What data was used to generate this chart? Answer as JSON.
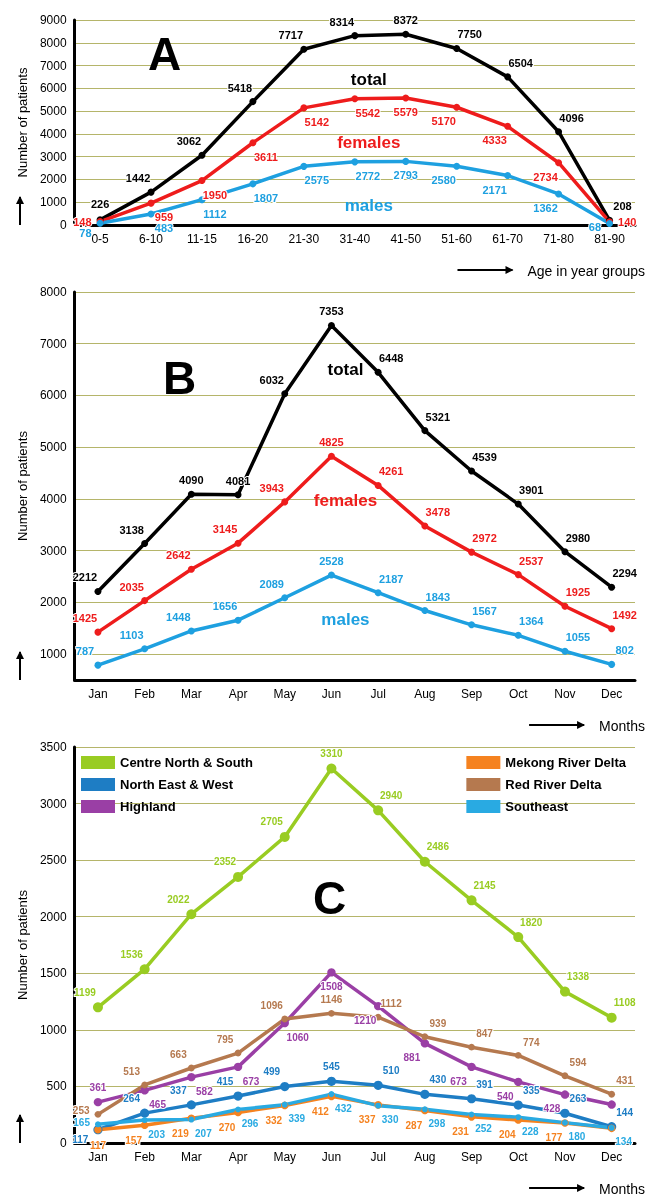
{
  "chart_data": [
    {
      "type": "line",
      "title": "A",
      "xlabel": "Age in year groups",
      "ylabel": "Number of patients",
      "categories": [
        "0-5",
        "6-10",
        "11-15",
        "16-20",
        "21-30",
        "31-40",
        "41-50",
        "51-60",
        "61-70",
        "71-80",
        "81-90"
      ],
      "series": [
        {
          "name": "total",
          "color": "#000000",
          "values": [
            226,
            1442,
            3062,
            5418,
            7717,
            8314,
            8372,
            7750,
            6504,
            4096,
            208
          ]
        },
        {
          "name": "females",
          "color": "#ee1c1c",
          "values": [
            148,
            959,
            1950,
            3611,
            5142,
            5542,
            5579,
            5170,
            4333,
            2734,
            140
          ]
        },
        {
          "name": "males",
          "color": "#1ea0e0",
          "values": [
            78,
            483,
            1112,
            1807,
            2575,
            2772,
            2793,
            2580,
            2171,
            1362,
            68
          ]
        }
      ],
      "ylim": [
        0,
        9000
      ],
      "yticks": [
        0,
        1000,
        2000,
        3000,
        4000,
        5000,
        6000,
        7000,
        8000,
        9000
      ],
      "grid": "y",
      "marker": "circle",
      "line_style": "solid",
      "data_labels": true
    },
    {
      "type": "line",
      "title": "B",
      "xlabel": "Months",
      "ylabel": "Number of patients",
      "categories": [
        "Jan",
        "Feb",
        "Mar",
        "Apr",
        "May",
        "Jun",
        "Jul",
        "Aug",
        "Sep",
        "Oct",
        "Nov",
        "Dec"
      ],
      "series": [
        {
          "name": "total",
          "color": "#000000",
          "values": [
            2212,
            3138,
            4090,
            4081,
            6032,
            7353,
            6448,
            5321,
            4539,
            3901,
            2980,
            2294
          ]
        },
        {
          "name": "females",
          "color": "#ee1c1c",
          "values": [
            1425,
            2035,
            2642,
            3145,
            3943,
            4825,
            4261,
            3478,
            2972,
            2537,
            1925,
            1492
          ]
        },
        {
          "name": "males",
          "color": "#1ea0e0",
          "values": [
            787,
            1103,
            1448,
            1656,
            2089,
            2528,
            2187,
            1843,
            1567,
            1364,
            1055,
            802
          ]
        }
      ],
      "ylim": [
        500,
        8000
      ],
      "yticks": [
        1000,
        2000,
        3000,
        4000,
        5000,
        6000,
        7000,
        8000
      ],
      "grid": "y",
      "marker": "circle",
      "line_style": "solid",
      "data_labels": true
    },
    {
      "type": "line",
      "title": "C",
      "xlabel": "Months",
      "ylabel": "Number of patients",
      "categories": [
        "Jan",
        "Feb",
        "Mar",
        "Apr",
        "May",
        "Jun",
        "Jul",
        "Aug",
        "Sep",
        "Oct",
        "Nov",
        "Dec"
      ],
      "series": [
        {
          "name": "Centre North & South",
          "color": "#99cc22",
          "values": [
            1199,
            1536,
            2022,
            2352,
            2705,
            3310,
            2940,
            2486,
            2145,
            1820,
            1338,
            1108
          ],
          "value_labels": [
            "1199",
            "1536",
            "2022",
            "2352",
            "2705",
            "3310",
            "2940",
            "2486",
            "2145",
            "1820",
            "1338",
            "1108"
          ]
        },
        {
          "name": "North East & West",
          "color": "#1e7dc4",
          "values": [
            117,
            264,
            337,
            415,
            499,
            545,
            510,
            430,
            391,
            335,
            263,
            144
          ],
          "value_labels": [
            "117",
            "264",
            "337",
            "415",
            "499",
            "545",
            "510",
            "430",
            "391",
            "335",
            "263",
            "144"
          ]
        },
        {
          "name": "Highland",
          "color": "#9a3fa5",
          "values": [
            361,
            465,
            582,
            673,
            1060,
            1508,
            1210,
            881,
            673,
            540,
            428,
            340
          ],
          "value_labels": [
            "361",
            "465",
            "582",
            "673",
            "1060",
            "1508",
            "1210",
            "881",
            "673",
            "540",
            "428",
            null
          ]
        },
        {
          "name": "Mekong River Delta",
          "color": "#f5821f",
          "values": [
            117,
            157,
            219,
            270,
            332,
            412,
            337,
            287,
            231,
            204,
            177,
            130
          ],
          "value_labels": [
            "117",
            "157",
            "219",
            "270",
            "332",
            "412",
            "337",
            "287",
            "231",
            "204",
            "177",
            null
          ]
        },
        {
          "name": "Red River Delta",
          "color": "#b5794f",
          "values": [
            253,
            513,
            663,
            795,
            1096,
            1146,
            1112,
            939,
            847,
            774,
            594,
            431
          ],
          "value_labels": [
            "253",
            "513",
            "663",
            "795",
            "1096",
            "1146",
            "1112",
            "939",
            "847",
            "774",
            "594",
            "431"
          ]
        },
        {
          "name": "Southeast",
          "color": "#29aae2",
          "values": [
            165,
            203,
            207,
            296,
            339,
            432,
            330,
            298,
            252,
            228,
            180,
            134
          ],
          "value_labels": [
            "165",
            "203",
            "207",
            "296",
            "339",
            "432",
            "330",
            "298",
            "252",
            "228",
            "180",
            "134"
          ]
        }
      ],
      "ylim": [
        0,
        3500
      ],
      "yticks": [
        0,
        500,
        1000,
        1500,
        2000,
        2500,
        3000,
        3500
      ],
      "grid": "y",
      "marker": "circle",
      "line_style": "solid",
      "legend": "top"
    }
  ]
}
